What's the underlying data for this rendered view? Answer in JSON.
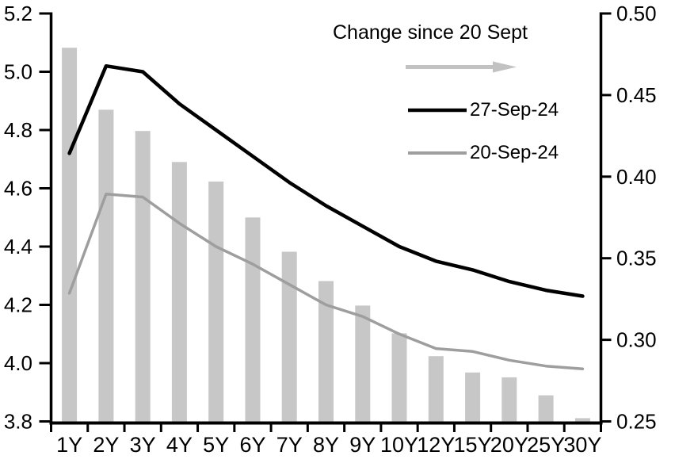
{
  "chart_data": {
    "type": "bar",
    "subtype": "combo-bar-line-dual-axis",
    "title": "",
    "xlabel": "",
    "ylabel": "",
    "grid": false,
    "legend_position": "top-center-inside",
    "categories": [
      "1Y",
      "2Y",
      "3Y",
      "4Y",
      "5Y",
      "6Y",
      "7Y",
      "8Y",
      "9Y",
      "10Y",
      "12Y",
      "15Y",
      "20Y",
      "25Y",
      "30Y"
    ],
    "series": [
      {
        "name": "27-Sep-24",
        "type": "line",
        "axis": "left",
        "color": "#000000",
        "values": [
          4.72,
          5.02,
          5.0,
          4.89,
          4.8,
          4.71,
          4.62,
          4.54,
          4.47,
          4.4,
          4.35,
          4.32,
          4.28,
          4.25,
          4.23
        ]
      },
      {
        "name": "20-Sep-24",
        "type": "line",
        "axis": "left",
        "color": "#9e9e9e",
        "values": [
          4.24,
          4.58,
          4.57,
          4.48,
          4.4,
          4.34,
          4.27,
          4.2,
          4.16,
          4.1,
          4.05,
          4.04,
          4.01,
          3.99,
          3.98
        ]
      },
      {
        "name": "Change since 20 Sept",
        "type": "bar",
        "axis": "right",
        "color": "#c7c7c7",
        "values": [
          0.479,
          0.441,
          0.428,
          0.409,
          0.397,
          0.375,
          0.354,
          0.336,
          0.321,
          0.304,
          0.29,
          0.28,
          0.277,
          0.266,
          0.252
        ]
      }
    ],
    "left_axis": {
      "min": 3.8,
      "max": 5.2,
      "tick_labels": [
        "5.2",
        "5.0",
        "4.8",
        "4.6",
        "4.4",
        "4.2",
        "4.0",
        "3.8"
      ]
    },
    "right_axis": {
      "min": 0.25,
      "max": 0.5,
      "tick_labels": [
        "0.50",
        "0.45",
        "0.40",
        "0.35",
        "0.30",
        "0.25"
      ]
    },
    "legend": {
      "bars_label": "Change since 20 Sept",
      "arrow_icon": "right-arrow",
      "series_1": "27-Sep-24",
      "series_2": "20-Sep-24"
    },
    "colors": {
      "black_line": "#000000",
      "gray_line": "#9e9e9e",
      "bar_fill": "#c7c7c7",
      "arrow": "#c2c2c2",
      "axis": "#000000",
      "background": "#ffffff"
    }
  }
}
